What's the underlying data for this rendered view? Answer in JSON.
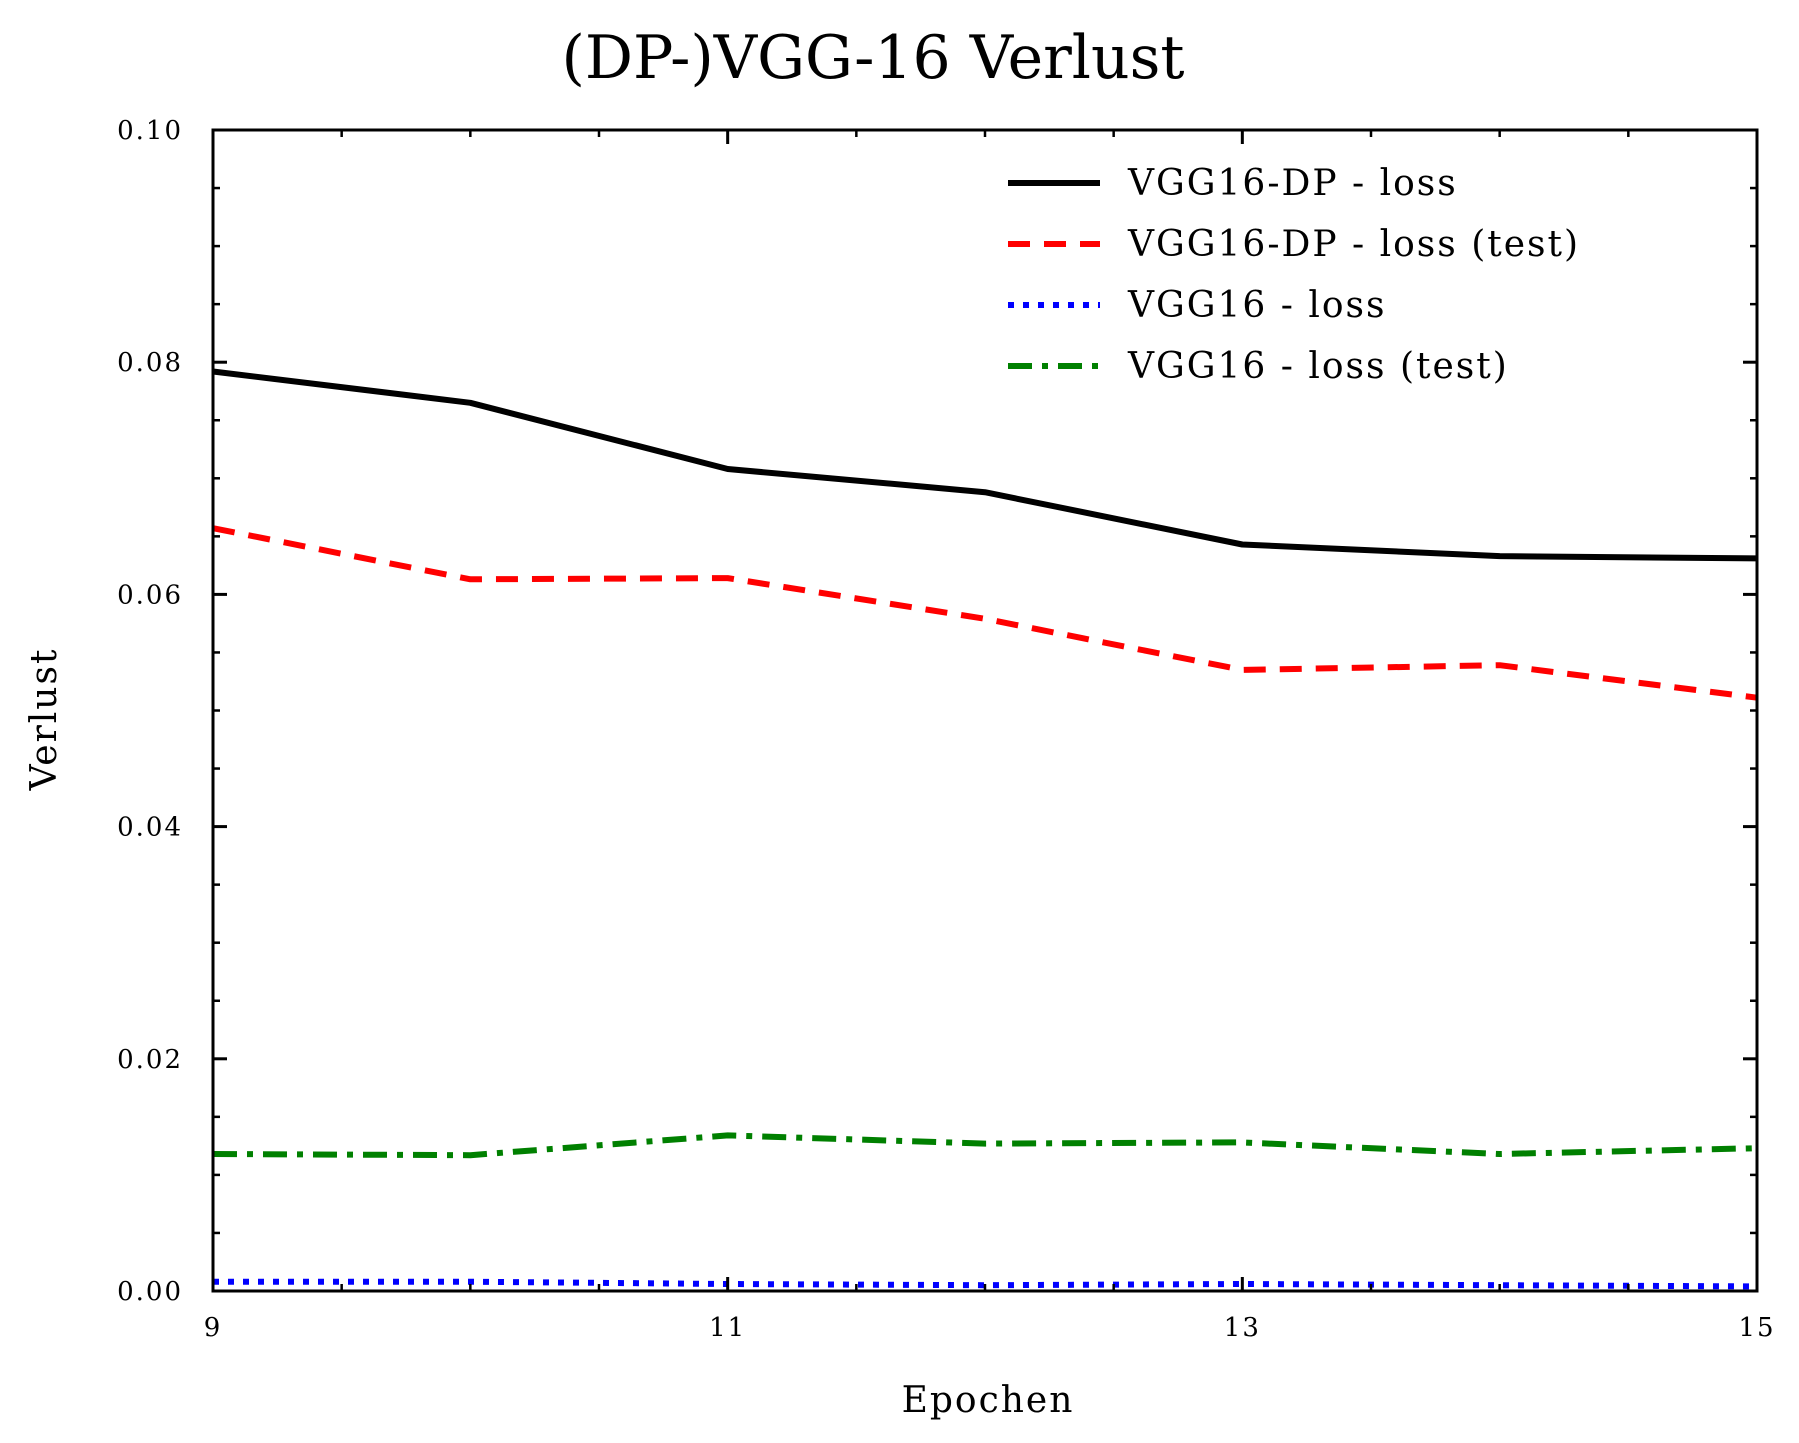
{
  "chart_data": {
    "type": "line",
    "title": "(DP-)VGG-16 Verlust",
    "xlabel": "Epochen",
    "ylabel": "Verlust",
    "xlim": [
      9,
      15
    ],
    "ylim": [
      0.0,
      0.1
    ],
    "xticks": [
      9,
      11,
      13,
      15
    ],
    "xtick_labels": [
      "9",
      "11",
      "13",
      "15"
    ],
    "yticks": [
      0.0,
      0.02,
      0.04,
      0.06,
      0.08,
      0.1
    ],
    "ytick_labels": [
      "0.00",
      "0.02",
      "0.04",
      "0.06",
      "0.08",
      "0.10"
    ],
    "x": [
      9,
      10,
      11,
      12,
      13,
      14,
      15
    ],
    "legend_position": "top-right",
    "grid": false,
    "series": [
      {
        "name": "VGG16-DP - loss",
        "color": "#000000",
        "style": "solid",
        "values": [
          0.0792,
          0.0765,
          0.0708,
          0.0688,
          0.0643,
          0.0633,
          0.0631
        ]
      },
      {
        "name": "VGG16-DP - loss (test)",
        "color": "#ff0000",
        "style": "dashed",
        "values": [
          0.0657,
          0.0613,
          0.0614,
          0.0579,
          0.0535,
          0.0539,
          0.0511
        ]
      },
      {
        "name": "VGG16 - loss",
        "color": "#0000ff",
        "style": "dotted",
        "values": [
          0.0008,
          0.0008,
          0.0006,
          0.0005,
          0.0006,
          0.0005,
          0.0004
        ]
      },
      {
        "name": "VGG16 - loss (test)",
        "color": "#008000",
        "style": "dashdot",
        "values": [
          0.0118,
          0.0117,
          0.0134,
          0.0127,
          0.0128,
          0.0118,
          0.0123
        ]
      }
    ]
  }
}
